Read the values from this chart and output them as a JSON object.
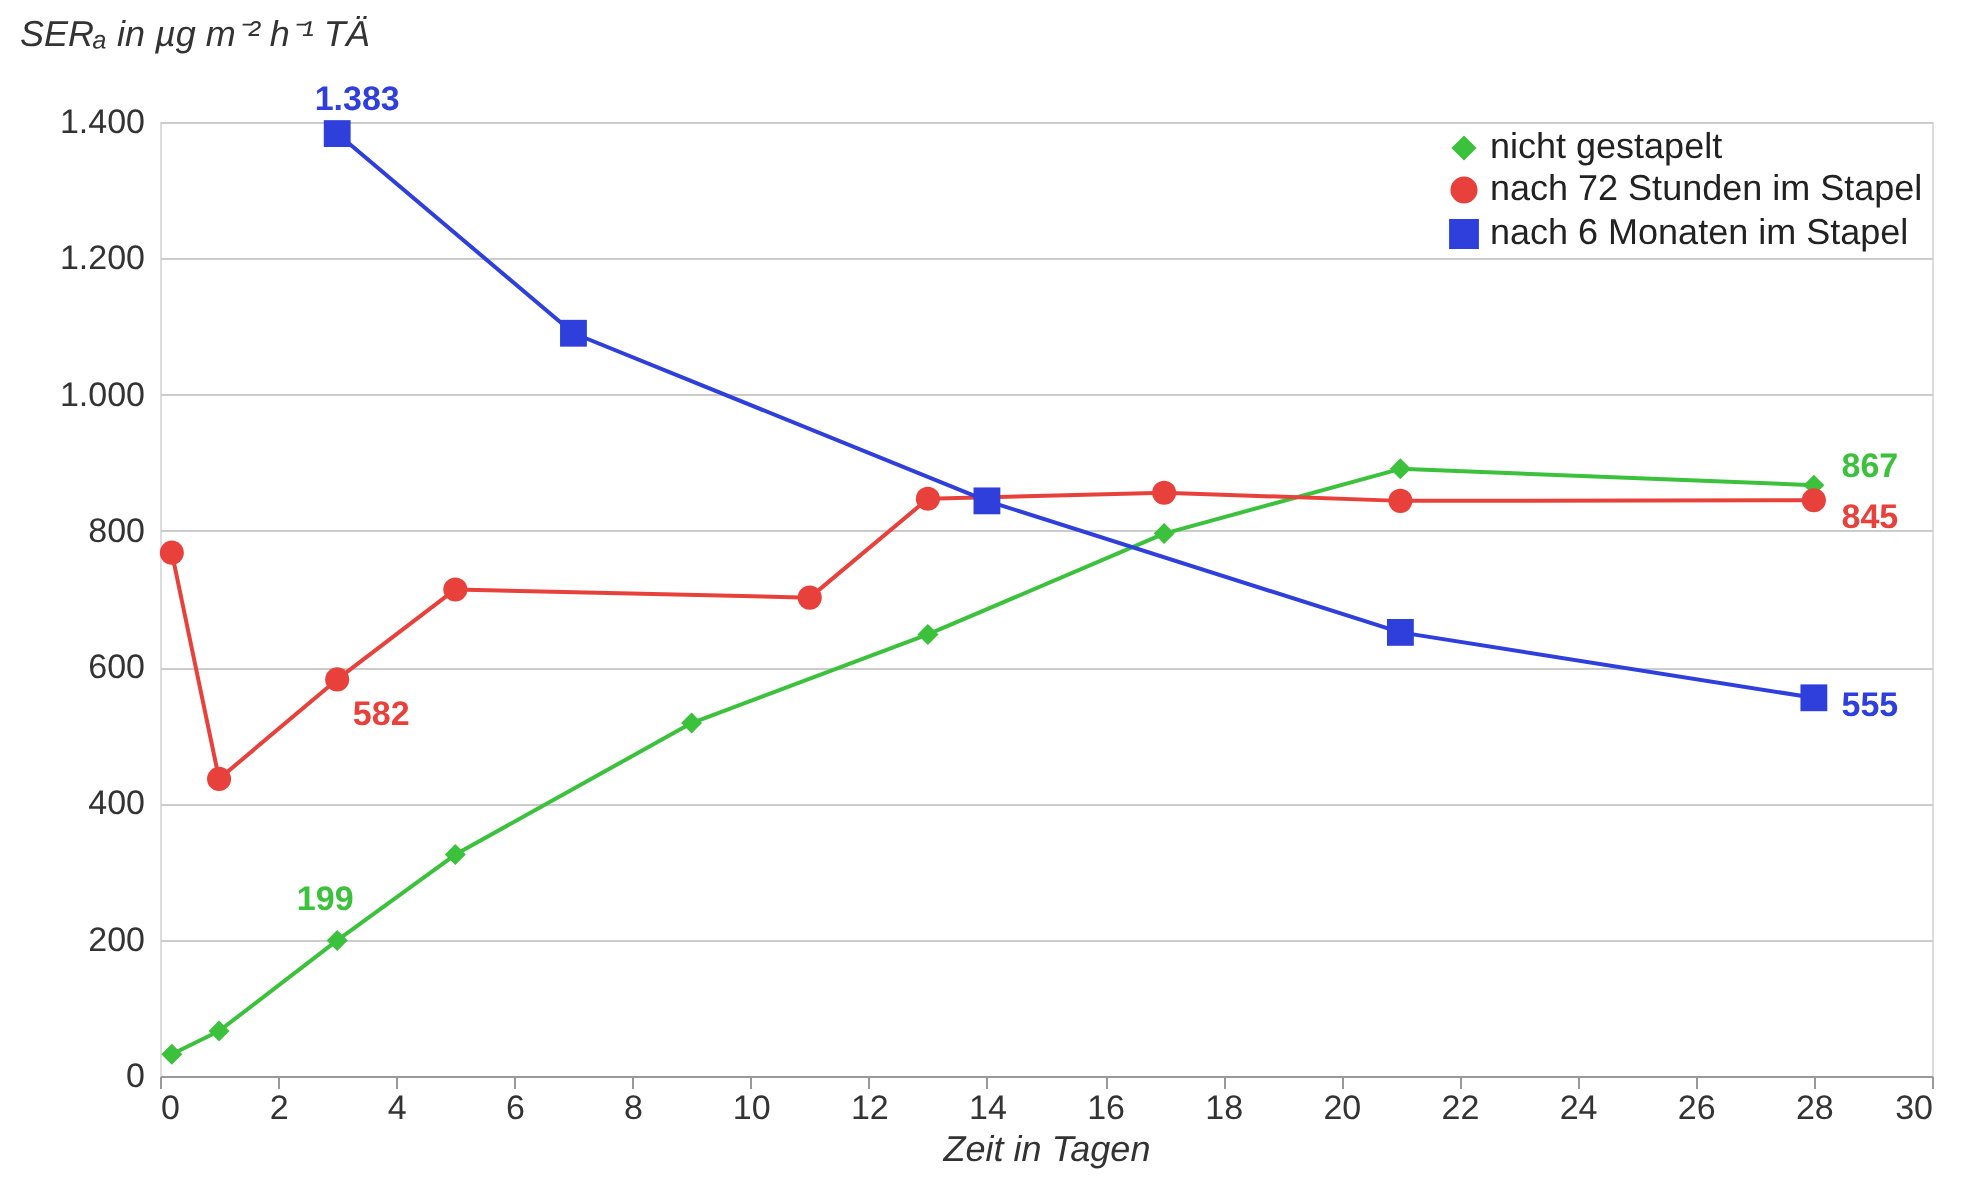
{
  "chart_data": {
    "type": "line",
    "ylabel": "SERₐ in µg m⁻² h⁻¹ TÄ",
    "xlabel": "Zeit in Tagen",
    "xlim": [
      0,
      30
    ],
    "xticks": [
      0,
      2,
      4,
      6,
      8,
      10,
      12,
      14,
      16,
      18,
      20,
      22,
      24,
      26,
      28,
      30
    ],
    "ylim": [
      0,
      1400
    ],
    "yticks": [
      0,
      200,
      400,
      600,
      800,
      {
        "value": 1000,
        "label": "1.000"
      },
      {
        "value": 1200,
        "label": "1.200"
      },
      {
        "value": 1400,
        "label": "1.400"
      }
    ],
    "grid": "y",
    "legend": "top right",
    "line_style": "solid",
    "series": [
      {
        "name": "nicht gestapelt",
        "color": "#3cc13c",
        "marker": "diamond",
        "x": [
          0.2,
          1,
          3,
          5,
          9,
          13,
          17,
          21,
          28
        ],
        "values": [
          32,
          66,
          199,
          325,
          518,
          648,
          796,
          891,
          867
        ],
        "value_labels": [
          null,
          null,
          "199",
          null,
          null,
          null,
          null,
          null,
          "867"
        ]
      },
      {
        "name": "nach 72 Stunden im Stapel",
        "color": "#e8413c",
        "marker": "circle",
        "x": [
          0.2,
          1,
          3,
          5,
          11,
          13,
          17,
          21,
          28
        ],
        "values": [
          768,
          436,
          582,
          714,
          702,
          847,
          856,
          844,
          845
        ],
        "value_labels": [
          null,
          null,
          "582",
          null,
          null,
          null,
          null,
          null,
          "845"
        ]
      },
      {
        "name": "nach 6 Monaten im Stapel",
        "color": "#2f3fdc",
        "marker": "square",
        "x": [
          3,
          7,
          14,
          21,
          28
        ],
        "values": [
          1383,
          1090,
          844,
          651,
          555
        ],
        "value_labels": [
          "1.383",
          null,
          null,
          null,
          "555"
        ]
      }
    ]
  }
}
